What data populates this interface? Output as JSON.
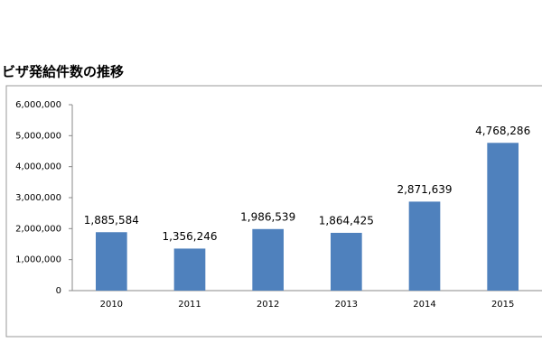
{
  "chart_data": {
    "type": "bar",
    "title": "ビザ発給件数の推移",
    "categories": [
      "2010",
      "2011",
      "2012",
      "2013",
      "2014",
      "2015"
    ],
    "values": [
      1885584,
      1356246,
      1986539,
      1864425,
      2871639,
      4768286
    ],
    "value_labels": [
      "1,885,584",
      "1,356,246",
      "1,986,539",
      "1,864,425",
      "2,871,639",
      "4,768,286"
    ],
    "value_label_colors": [
      "#000000",
      "#000000",
      "#000000",
      "#000000",
      "#000000",
      "#c0392b"
    ],
    "color": "#4f81bd",
    "ylim": [
      0,
      6000000
    ],
    "yticks": [
      0,
      {
        "value": 1000000,
        "label": "1,000,000"
      },
      {
        "value": 2000000,
        "label": "2,000,000"
      },
      {
        "value": 3000000,
        "label": "3,000,000"
      },
      {
        "value": 4000000,
        "label": "4,000,000"
      },
      {
        "value": 5000000,
        "label": "5,000,000"
      },
      {
        "value": 6000000,
        "label": "6,000,000"
      }
    ],
    "grid": false
  }
}
